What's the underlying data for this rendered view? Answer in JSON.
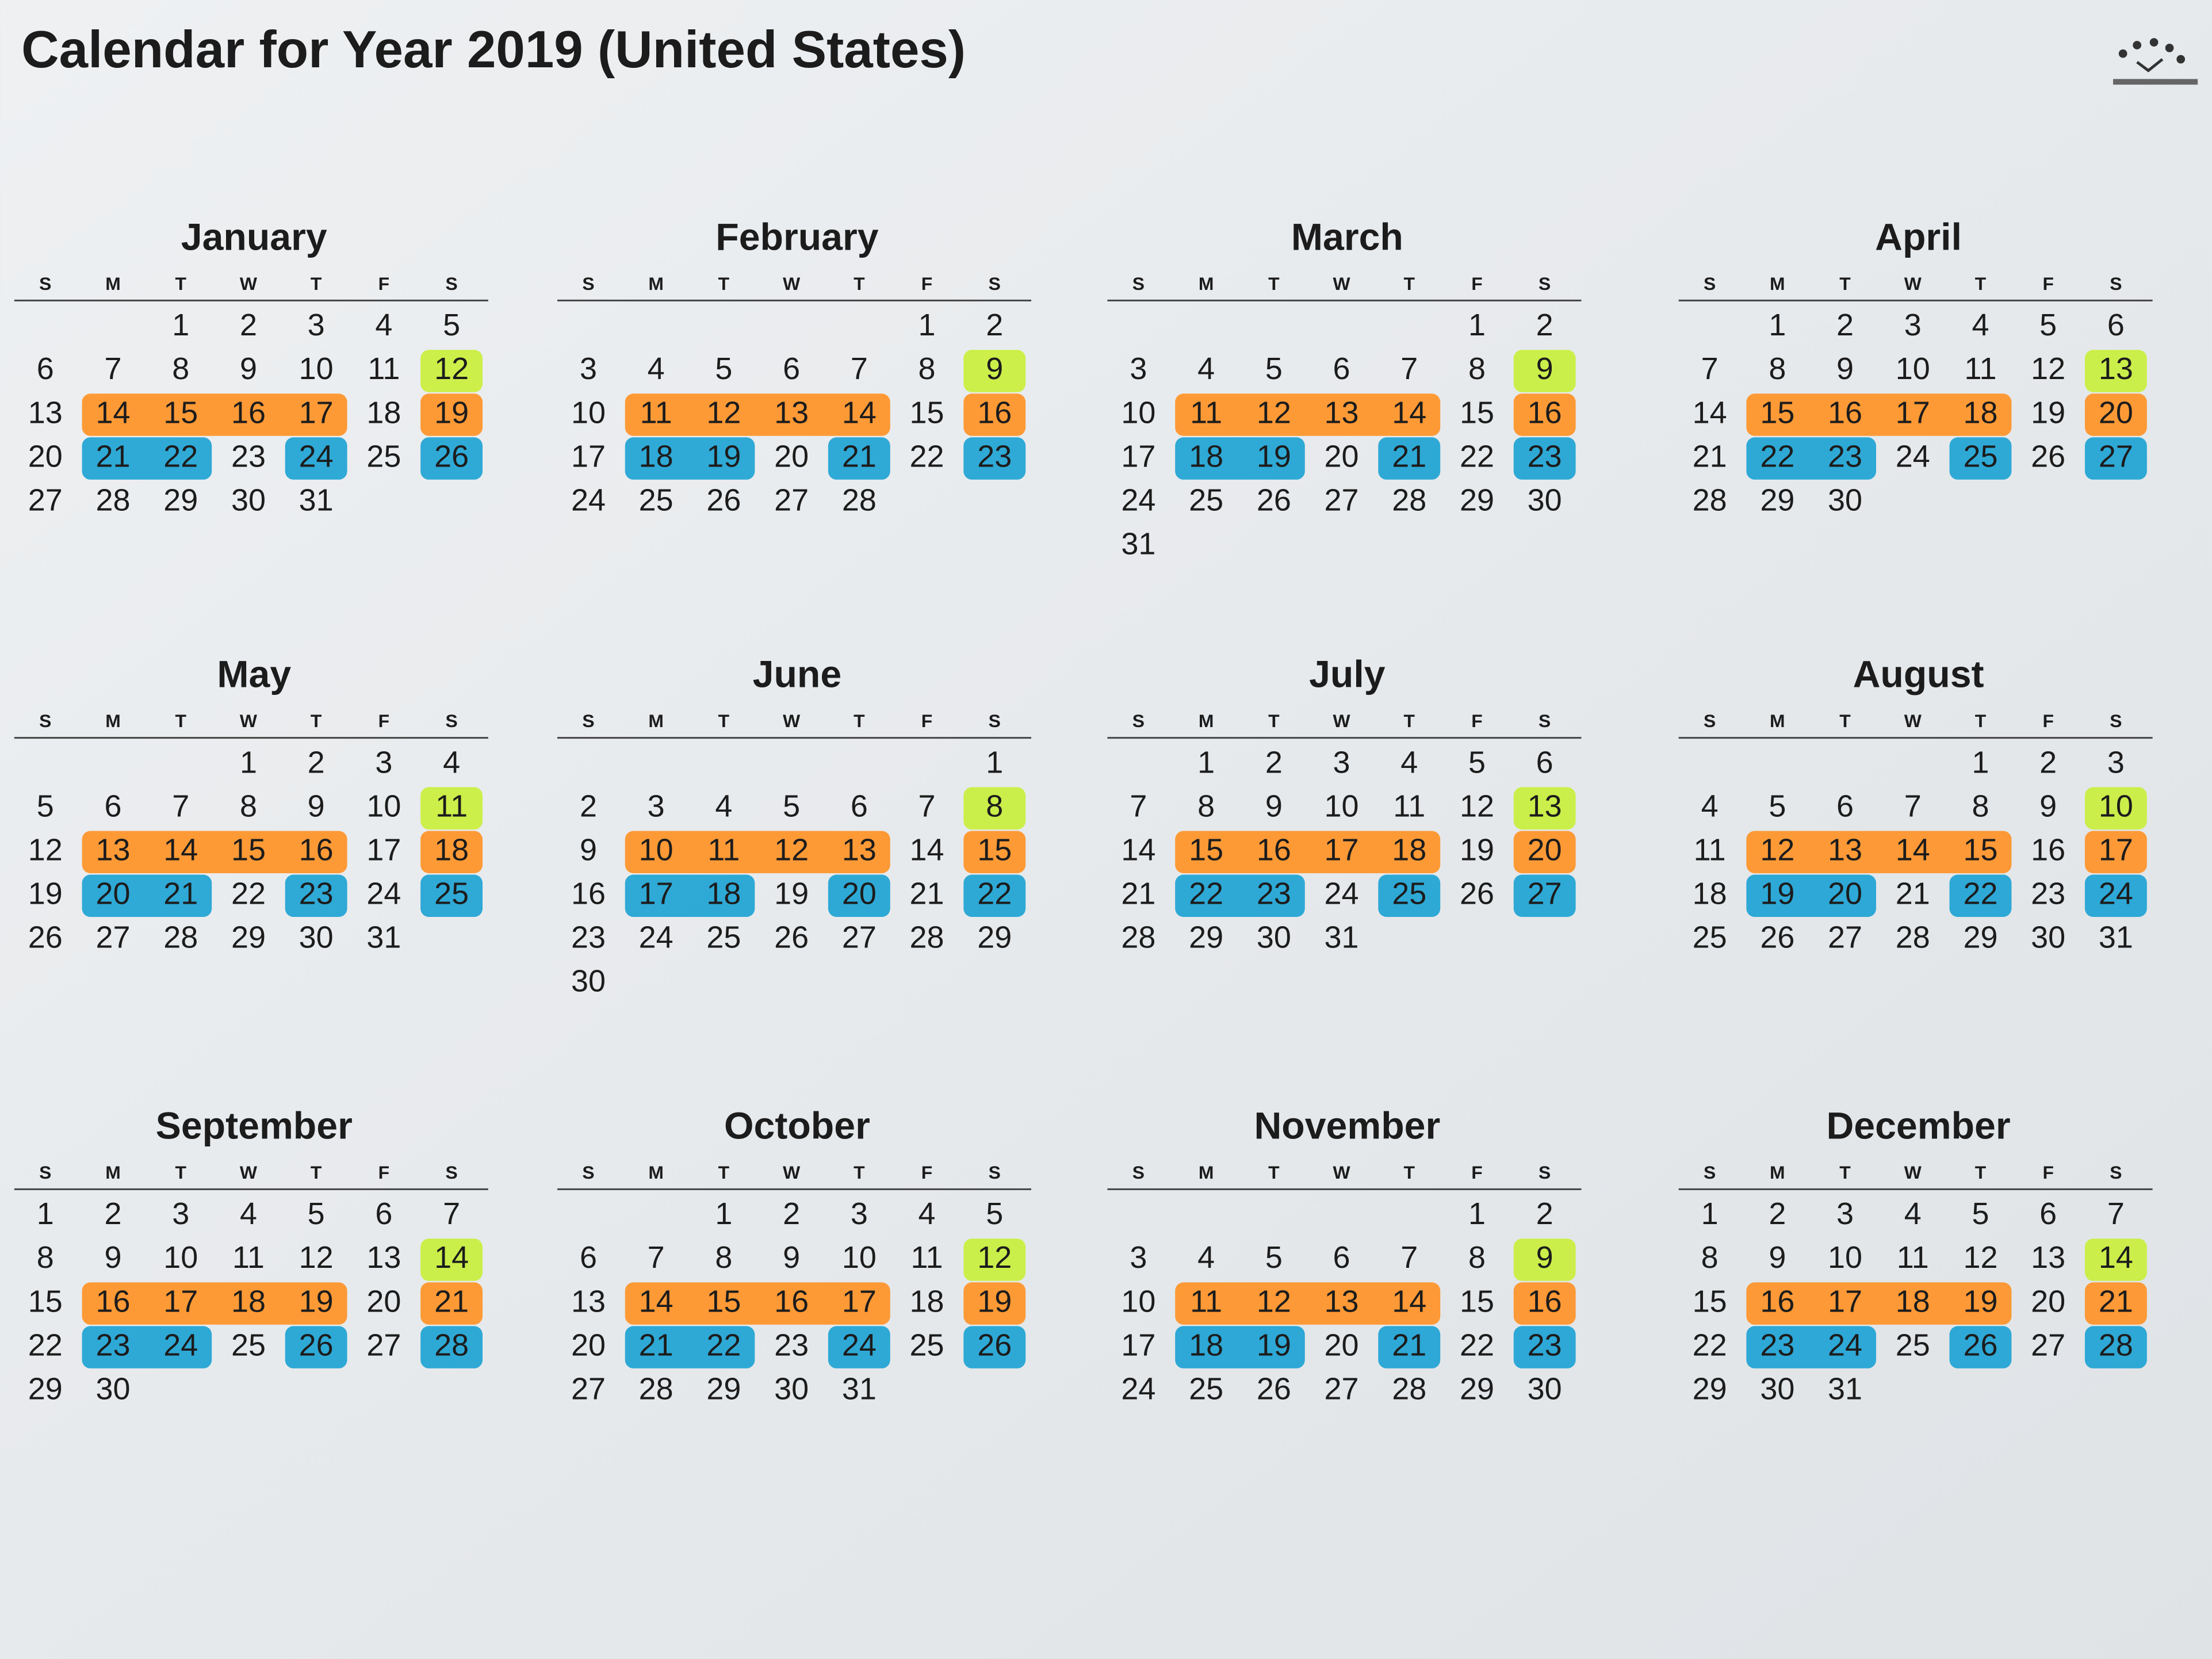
{
  "title": "Calendar for Year 2019 (United States)",
  "weekdays": [
    "S",
    "M",
    "T",
    "W",
    "T",
    "F",
    "S"
  ],
  "highlight_colors": {
    "green": "#c9ef3c",
    "orange": "#ff9326",
    "blue": "#1ea3d4"
  },
  "months": [
    {
      "name": "January",
      "weeks": [
        [
          null,
          null,
          1,
          2,
          3,
          4,
          5
        ],
        [
          6,
          7,
          8,
          9,
          10,
          11,
          12
        ],
        [
          13,
          14,
          15,
          16,
          17,
          18,
          19
        ],
        [
          20,
          21,
          22,
          23,
          24,
          25,
          26
        ],
        [
          27,
          28,
          29,
          30,
          31,
          null,
          null
        ]
      ]
    },
    {
      "name": "February",
      "weeks": [
        [
          null,
          null,
          null,
          null,
          null,
          1,
          2
        ],
        [
          3,
          4,
          5,
          6,
          7,
          8,
          9
        ],
        [
          10,
          11,
          12,
          13,
          14,
          15,
          16
        ],
        [
          17,
          18,
          19,
          20,
          21,
          22,
          23
        ],
        [
          24,
          25,
          26,
          27,
          28,
          null,
          null
        ]
      ]
    },
    {
      "name": "March",
      "weeks": [
        [
          null,
          null,
          null,
          null,
          null,
          1,
          2
        ],
        [
          3,
          4,
          5,
          6,
          7,
          8,
          9
        ],
        [
          10,
          11,
          12,
          13,
          14,
          15,
          16
        ],
        [
          17,
          18,
          19,
          20,
          21,
          22,
          23
        ],
        [
          24,
          25,
          26,
          27,
          28,
          29,
          30
        ],
        [
          31,
          null,
          null,
          null,
          null,
          null,
          null
        ]
      ]
    },
    {
      "name": "April",
      "weeks": [
        [
          null,
          1,
          2,
          3,
          4,
          5,
          6
        ],
        [
          7,
          8,
          9,
          10,
          11,
          12,
          13
        ],
        [
          14,
          15,
          16,
          17,
          18,
          19,
          20
        ],
        [
          21,
          22,
          23,
          24,
          25,
          26,
          27
        ],
        [
          28,
          29,
          30,
          null,
          null,
          null,
          null
        ]
      ]
    },
    {
      "name": "May",
      "weeks": [
        [
          null,
          null,
          null,
          1,
          2,
          3,
          4
        ],
        [
          5,
          6,
          7,
          8,
          9,
          10,
          11
        ],
        [
          12,
          13,
          14,
          15,
          16,
          17,
          18
        ],
        [
          19,
          20,
          21,
          22,
          23,
          24,
          25
        ],
        [
          26,
          27,
          28,
          29,
          30,
          31,
          null
        ]
      ]
    },
    {
      "name": "June",
      "weeks": [
        [
          null,
          null,
          null,
          null,
          null,
          null,
          1
        ],
        [
          2,
          3,
          4,
          5,
          6,
          7,
          8
        ],
        [
          9,
          10,
          11,
          12,
          13,
          14,
          15
        ],
        [
          16,
          17,
          18,
          19,
          20,
          21,
          22
        ],
        [
          23,
          24,
          25,
          26,
          27,
          28,
          29
        ],
        [
          30,
          null,
          null,
          null,
          null,
          null,
          null
        ]
      ]
    },
    {
      "name": "July",
      "weeks": [
        [
          null,
          1,
          2,
          3,
          4,
          5,
          6
        ],
        [
          7,
          8,
          9,
          10,
          11,
          12,
          13
        ],
        [
          14,
          15,
          16,
          17,
          18,
          19,
          20
        ],
        [
          21,
          22,
          23,
          24,
          25,
          26,
          27
        ],
        [
          28,
          29,
          30,
          31,
          null,
          null,
          null
        ]
      ]
    },
    {
      "name": "August",
      "weeks": [
        [
          null,
          null,
          null,
          null,
          1,
          2,
          3
        ],
        [
          4,
          5,
          6,
          7,
          8,
          9,
          10
        ],
        [
          11,
          12,
          13,
          14,
          15,
          16,
          17
        ],
        [
          18,
          19,
          20,
          21,
          22,
          23,
          24
        ],
        [
          25,
          26,
          27,
          28,
          29,
          30,
          31
        ]
      ]
    },
    {
      "name": "September",
      "weeks": [
        [
          1,
          2,
          3,
          4,
          5,
          6,
          7
        ],
        [
          8,
          9,
          10,
          11,
          12,
          13,
          14
        ],
        [
          15,
          16,
          17,
          18,
          19,
          20,
          21
        ],
        [
          22,
          23,
          24,
          25,
          26,
          27,
          28
        ],
        [
          29,
          30,
          null,
          null,
          null,
          null,
          null
        ]
      ]
    },
    {
      "name": "October",
      "weeks": [
        [
          null,
          null,
          1,
          2,
          3,
          4,
          5
        ],
        [
          6,
          7,
          8,
          9,
          10,
          11,
          12
        ],
        [
          13,
          14,
          15,
          16,
          17,
          18,
          19
        ],
        [
          20,
          21,
          22,
          23,
          24,
          25,
          26
        ],
        [
          27,
          28,
          29,
          30,
          31,
          null,
          null
        ]
      ]
    },
    {
      "name": "November",
      "weeks": [
        [
          null,
          null,
          null,
          null,
          null,
          1,
          2
        ],
        [
          3,
          4,
          5,
          6,
          7,
          8,
          9
        ],
        [
          10,
          11,
          12,
          13,
          14,
          15,
          16
        ],
        [
          17,
          18,
          19,
          20,
          21,
          22,
          23
        ],
        [
          24,
          25,
          26,
          27,
          28,
          29,
          30
        ]
      ]
    },
    {
      "name": "December",
      "weeks": [
        [
          1,
          2,
          3,
          4,
          5,
          6,
          7
        ],
        [
          8,
          9,
          10,
          11,
          12,
          13,
          14
        ],
        [
          15,
          16,
          17,
          18,
          19,
          20,
          21
        ],
        [
          22,
          23,
          24,
          25,
          26,
          27,
          28
        ],
        [
          29,
          30,
          31,
          null,
          null,
          null,
          null
        ]
      ]
    }
  ]
}
